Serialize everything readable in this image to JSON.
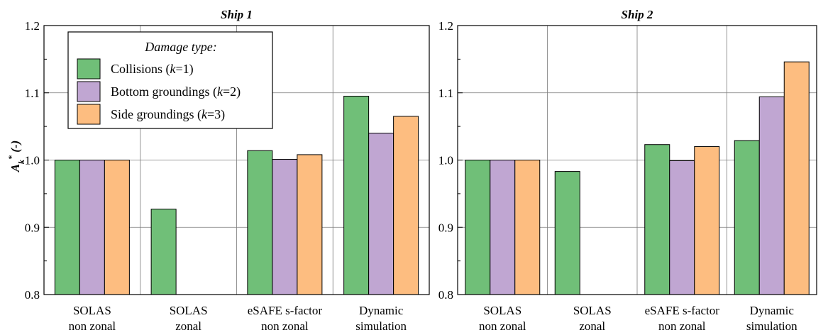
{
  "chart_data": {
    "type": "bar",
    "ylabel_main": "A",
    "ylabel_sub": "k",
    "ylabel_sup": "*",
    "ylabel_suffix": " (-)",
    "ylim": [
      0.8,
      1.2
    ],
    "yticks": [
      "0.8",
      "0.9",
      "1.0",
      "1.1",
      "1.2"
    ],
    "grid": true,
    "legend": {
      "placement": "top-left",
      "title": "Damage type:",
      "entries": [
        {
          "text": "Collisions (",
          "var": "k",
          "tail": "=1)",
          "color": "#70bf78"
        },
        {
          "text": "Bottom groundings (",
          "var": "k",
          "tail": "=2)",
          "color": "#c0a6d2"
        },
        {
          "text": "Side groundings (",
          "var": "k",
          "tail": "=3)",
          "color": "#fdbd80"
        }
      ]
    },
    "categories": [
      [
        "SOLAS",
        "non zonal"
      ],
      [
        "SOLAS",
        "zonal"
      ],
      [
        "eSAFE s-factor",
        "non zonal"
      ],
      [
        "Dynamic",
        "simulation"
      ]
    ],
    "panels": [
      {
        "title": "Ship 1",
        "series": [
          {
            "name": "Collisions (k=1)",
            "color": "#70bf78",
            "values": [
              1.0,
              0.927,
              1.014,
              1.095
            ]
          },
          {
            "name": "Bottom groundings (k=2)",
            "color": "#c0a6d2",
            "values": [
              1.0,
              null,
              1.001,
              1.04
            ]
          },
          {
            "name": "Side groundings (k=3)",
            "color": "#fdbd80",
            "values": [
              1.0,
              null,
              1.008,
              1.065
            ]
          }
        ]
      },
      {
        "title": "Ship 2",
        "series": [
          {
            "name": "Collisions (k=1)",
            "color": "#70bf78",
            "values": [
              1.0,
              0.983,
              1.023,
              1.029
            ]
          },
          {
            "name": "Bottom groundings (k=2)",
            "color": "#c0a6d2",
            "values": [
              1.0,
              null,
              0.999,
              1.094
            ]
          },
          {
            "name": "Side groundings (k=3)",
            "color": "#fdbd80",
            "values": [
              1.0,
              null,
              1.02,
              1.146
            ]
          }
        ]
      }
    ]
  }
}
